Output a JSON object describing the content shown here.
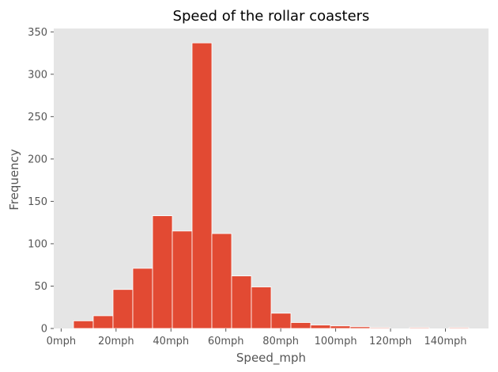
{
  "chart_data": {
    "type": "bar",
    "title": "Speed of the rollar coasters",
    "xlabel": "Speed_mph",
    "ylabel": "Frequency",
    "bins": [
      {
        "start": 4.5,
        "end": 11.7,
        "count": 9
      },
      {
        "start": 11.7,
        "end": 18.9,
        "count": 15
      },
      {
        "start": 18.9,
        "end": 26.1,
        "count": 46
      },
      {
        "start": 26.1,
        "end": 33.3,
        "count": 71
      },
      {
        "start": 33.3,
        "end": 40.5,
        "count": 133
      },
      {
        "start": 40.5,
        "end": 47.7,
        "count": 115
      },
      {
        "start": 47.7,
        "end": 54.9,
        "count": 337
      },
      {
        "start": 54.9,
        "end": 62.1,
        "count": 112
      },
      {
        "start": 62.1,
        "end": 69.3,
        "count": 62
      },
      {
        "start": 69.3,
        "end": 76.5,
        "count": 49
      },
      {
        "start": 76.5,
        "end": 83.7,
        "count": 18
      },
      {
        "start": 83.7,
        "end": 90.9,
        "count": 7
      },
      {
        "start": 90.9,
        "end": 98.1,
        "count": 4
      },
      {
        "start": 98.1,
        "end": 105.3,
        "count": 3
      },
      {
        "start": 105.3,
        "end": 112.5,
        "count": 2
      },
      {
        "start": 112.5,
        "end": 119.7,
        "count": 1
      },
      {
        "start": 119.7,
        "end": 126.9,
        "count": 0
      },
      {
        "start": 126.9,
        "end": 134.1,
        "count": 1
      },
      {
        "start": 134.1,
        "end": 141.3,
        "count": 0
      },
      {
        "start": 141.3,
        "end": 148.5,
        "count": 1
      }
    ],
    "xticks": [
      {
        "value": 0,
        "label": "0mph"
      },
      {
        "value": 20,
        "label": "20mph"
      },
      {
        "value": 40,
        "label": "40mph"
      },
      {
        "value": 60,
        "label": "60mph"
      },
      {
        "value": 80,
        "label": "80mph"
      },
      {
        "value": 100,
        "label": "100mph"
      },
      {
        "value": 120,
        "label": "120mph"
      },
      {
        "value": 140,
        "label": "140mph"
      }
    ],
    "yticks": [
      0,
      50,
      100,
      150,
      200,
      250,
      300,
      350
    ],
    "xlim": [
      -2.7,
      155.7
    ],
    "ylim": [
      0,
      354
    ],
    "grid": false,
    "colors": {
      "bar": "#e24a33",
      "bar_edge": "#ffffff",
      "plot_background": "#e5e5e5"
    }
  }
}
